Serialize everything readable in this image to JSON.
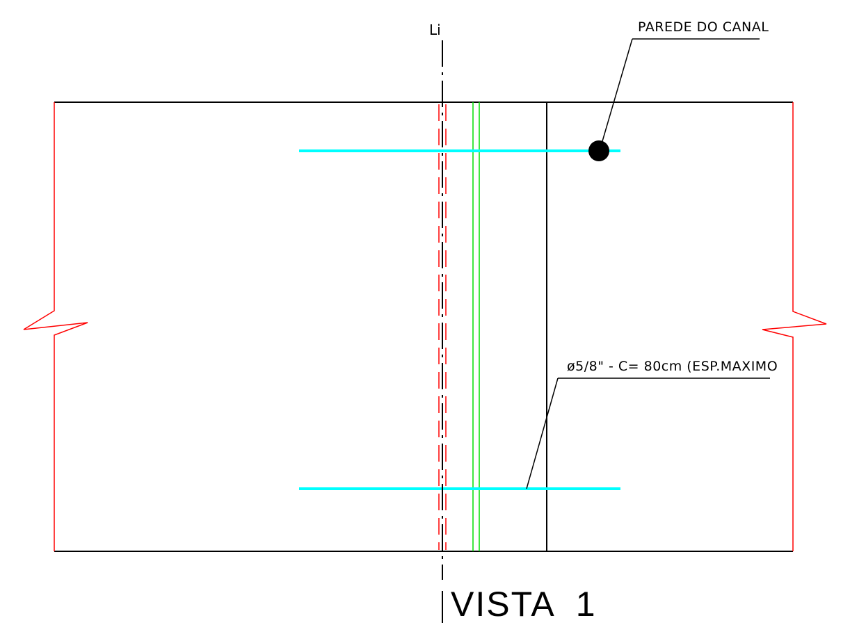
{
  "drawing": {
    "axis_label": "Li",
    "title": "VISTA  1",
    "callout_wall": "PAREDE DO CANAL",
    "callout_bar": "ø5/8\" - C= 80cm (ESP.MAXIMO"
  },
  "colors": {
    "outline": "#000000",
    "break_lines": "#ff0000",
    "dashed_rebar": "#ff0000",
    "waterstop": "#00dd00",
    "dowel_bars": "#00ffff",
    "bar_section_dot": "#000000",
    "background": "#ffffff"
  }
}
